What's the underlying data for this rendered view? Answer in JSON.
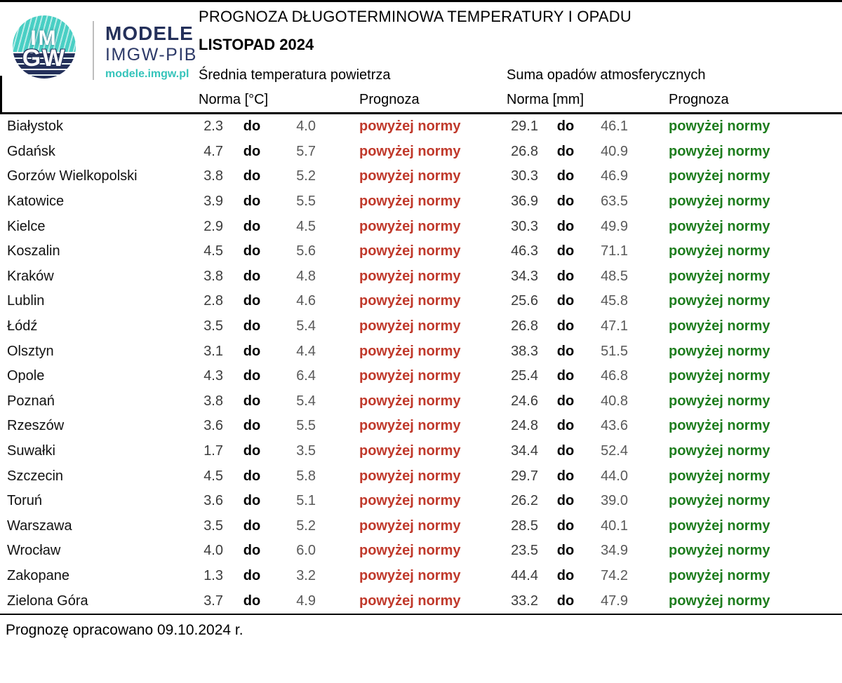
{
  "header": {
    "logo": {
      "circle_text_top": "IM",
      "circle_text_bottom": "GW",
      "brand_line1": "MODELE",
      "brand_line2": "IMGW-PIB",
      "brand_url": "modele.imgw.pl"
    },
    "title_line1": "PROGNOZA DŁUGOTERMINOWA TEMPERATURY I OPADU",
    "title_line2": "LISTOPAD 2024",
    "temp_section": "Średnia temperatura powietrza",
    "precip_section": "Suma opadów atmosferycznych",
    "col_norma_temp": "Norma [°C]",
    "col_prognoza_temp": "Prognoza",
    "col_norma_precip": "Norma [mm]",
    "col_prognoza_precip": "Prognoza"
  },
  "table": {
    "separator": "do",
    "rows": [
      {
        "city": "Białystok",
        "t_low": "2.3",
        "t_high": "4.0",
        "t_prog": "powyżej normy",
        "p_low": "29.1",
        "p_high": "46.1",
        "p_prog": "powyżej normy"
      },
      {
        "city": "Gdańsk",
        "t_low": "4.7",
        "t_high": "5.7",
        "t_prog": "powyżej normy",
        "p_low": "26.8",
        "p_high": "40.9",
        "p_prog": "powyżej normy"
      },
      {
        "city": "Gorzów Wielkopolski",
        "t_low": "3.8",
        "t_high": "5.2",
        "t_prog": "powyżej normy",
        "p_low": "30.3",
        "p_high": "46.9",
        "p_prog": "powyżej normy"
      },
      {
        "city": "Katowice",
        "t_low": "3.9",
        "t_high": "5.5",
        "t_prog": "powyżej normy",
        "p_low": "36.9",
        "p_high": "63.5",
        "p_prog": "powyżej normy"
      },
      {
        "city": "Kielce",
        "t_low": "2.9",
        "t_high": "4.5",
        "t_prog": "powyżej normy",
        "p_low": "30.3",
        "p_high": "49.9",
        "p_prog": "powyżej normy"
      },
      {
        "city": "Koszalin",
        "t_low": "4.5",
        "t_high": "5.6",
        "t_prog": "powyżej normy",
        "p_low": "46.3",
        "p_high": "71.1",
        "p_prog": "powyżej normy"
      },
      {
        "city": "Kraków",
        "t_low": "3.8",
        "t_high": "4.8",
        "t_prog": "powyżej normy",
        "p_low": "34.3",
        "p_high": "48.5",
        "p_prog": "powyżej normy"
      },
      {
        "city": "Lublin",
        "t_low": "2.8",
        "t_high": "4.6",
        "t_prog": "powyżej normy",
        "p_low": "25.6",
        "p_high": "45.8",
        "p_prog": "powyżej normy"
      },
      {
        "city": "Łódź",
        "t_low": "3.5",
        "t_high": "5.4",
        "t_prog": "powyżej normy",
        "p_low": "26.8",
        "p_high": "47.1",
        "p_prog": "powyżej normy"
      },
      {
        "city": "Olsztyn",
        "t_low": "3.1",
        "t_high": "4.4",
        "t_prog": "powyżej normy",
        "p_low": "38.3",
        "p_high": "51.5",
        "p_prog": "powyżej normy"
      },
      {
        "city": "Opole",
        "t_low": "4.3",
        "t_high": "6.4",
        "t_prog": "powyżej normy",
        "p_low": "25.4",
        "p_high": "46.8",
        "p_prog": "powyżej normy"
      },
      {
        "city": "Poznań",
        "t_low": "3.8",
        "t_high": "5.4",
        "t_prog": "powyżej normy",
        "p_low": "24.6",
        "p_high": "40.8",
        "p_prog": "powyżej normy"
      },
      {
        "city": "Rzeszów",
        "t_low": "3.6",
        "t_high": "5.5",
        "t_prog": "powyżej normy",
        "p_low": "24.8",
        "p_high": "43.6",
        "p_prog": "powyżej normy"
      },
      {
        "city": "Suwałki",
        "t_low": "1.7",
        "t_high": "3.5",
        "t_prog": "powyżej normy",
        "p_low": "34.4",
        "p_high": "52.4",
        "p_prog": "powyżej normy"
      },
      {
        "city": "Szczecin",
        "t_low": "4.5",
        "t_high": "5.8",
        "t_prog": "powyżej normy",
        "p_low": "29.7",
        "p_high": "44.0",
        "p_prog": "powyżej normy"
      },
      {
        "city": "Toruń",
        "t_low": "3.6",
        "t_high": "5.1",
        "t_prog": "powyżej normy",
        "p_low": "26.2",
        "p_high": "39.0",
        "p_prog": "powyżej normy"
      },
      {
        "city": "Warszawa",
        "t_low": "3.5",
        "t_high": "5.2",
        "t_prog": "powyżej normy",
        "p_low": "28.5",
        "p_high": "40.1",
        "p_prog": "powyżej normy"
      },
      {
        "city": "Wrocław",
        "t_low": "4.0",
        "t_high": "6.0",
        "t_prog": "powyżej normy",
        "p_low": "23.5",
        "p_high": "34.9",
        "p_prog": "powyżej normy"
      },
      {
        "city": "Zakopane",
        "t_low": "1.3",
        "t_high": "3.2",
        "t_prog": "powyżej normy",
        "p_low": "44.4",
        "p_high": "74.2",
        "p_prog": "powyżej normy"
      },
      {
        "city": "Zielona Góra",
        "t_low": "3.7",
        "t_high": "4.9",
        "t_prog": "powyżej normy",
        "p_low": "33.2",
        "p_high": "47.9",
        "p_prog": "powyżej normy"
      }
    ]
  },
  "footer": {
    "note": "Prognozę opracowano 09.10.2024 r."
  },
  "colors": {
    "temp_prognoza": "#c0392b",
    "precip_prognoza": "#1e7d1e",
    "brand_teal": "#45cfc3",
    "brand_navy": "#24305a"
  }
}
